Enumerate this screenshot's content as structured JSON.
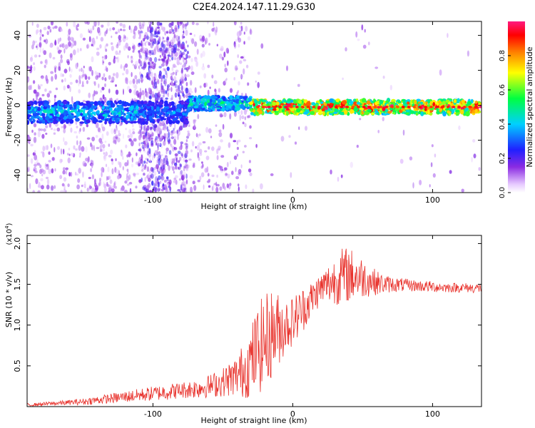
{
  "title": "C2E4.2024.147.11.29.G30",
  "chart_data": [
    {
      "type": "heatmap",
      "xlabel": "Height of straight line (km)",
      "ylabel": "Frequency (Hz)",
      "xlim": [
        -190,
        135
      ],
      "ylim": [
        -50,
        48
      ],
      "xticks": [
        -100,
        0,
        100
      ],
      "yticks": [
        -40,
        -20,
        0,
        20,
        40
      ],
      "grid": false,
      "colorbar": {
        "label": "Normalized spectral amplitude",
        "range": [
          0,
          1
        ],
        "ticks": [
          "0.0",
          "0.2",
          "0.4",
          "0.6",
          "0.8"
        ],
        "tick_values": [
          0.0,
          0.2,
          0.4,
          0.6,
          0.8
        ]
      },
      "segments": [
        {
          "x_range": [
            -190,
            -110
          ],
          "center_hz": -4,
          "max_amplitude": 0.35
        },
        {
          "x_range": [
            -110,
            -75
          ],
          "center_hz": -4,
          "max_amplitude": 0.25
        },
        {
          "x_range": [
            -75,
            -30
          ],
          "center_hz": 1,
          "max_amplitude": 0.4
        },
        {
          "x_range": [
            -30,
            135
          ],
          "center_hz": -1,
          "max_amplitude": 0.95
        }
      ]
    },
    {
      "type": "line",
      "xlabel": "Height of straight line (km)",
      "ylabel": "SNR (10 * v/v)",
      "y_multiplier": "(x10",
      "y_multiplier_exp": "4",
      "y_multiplier_close": ")",
      "xlim": [
        -190,
        135
      ],
      "ylim": [
        0,
        2.1
      ],
      "xticks": [
        -100,
        0,
        100
      ],
      "yticks": [
        0.5,
        1.0,
        1.5,
        2.0
      ],
      "ytick_labels": [
        "0.5",
        "1.0",
        "1.5",
        "2.0"
      ],
      "grid": false,
      "series": [
        {
          "color": "#e8302a",
          "x": [
            -190,
            -180,
            -170,
            -160,
            -150,
            -140,
            -130,
            -120,
            -110,
            -100,
            -90,
            -80,
            -70,
            -60,
            -50,
            -40,
            -35,
            -30,
            -25,
            -20,
            -15,
            -10,
            -5,
            0,
            5,
            10,
            15,
            20,
            25,
            30,
            35,
            40,
            45,
            50,
            55,
            60,
            65,
            70,
            80,
            90,
            100,
            110,
            120,
            135
          ],
          "y": [
            0.02,
            0.03,
            0.04,
            0.05,
            0.06,
            0.08,
            0.1,
            0.12,
            0.14,
            0.16,
            0.18,
            0.2,
            0.22,
            0.25,
            0.3,
            0.38,
            0.45,
            0.55,
            0.7,
            0.8,
            0.9,
            0.95,
            1.0,
            1.05,
            1.15,
            1.25,
            1.35,
            1.45,
            1.5,
            1.55,
            1.6,
            1.62,
            1.6,
            1.58,
            1.55,
            1.52,
            1.5,
            1.5,
            1.49,
            1.48,
            1.47,
            1.46,
            1.46,
            1.45
          ],
          "noise_amplitude": [
            0.02,
            0.02,
            0.03,
            0.03,
            0.04,
            0.05,
            0.06,
            0.07,
            0.08,
            0.09,
            0.1,
            0.1,
            0.12,
            0.14,
            0.18,
            0.25,
            0.35,
            0.45,
            0.55,
            0.6,
            0.55,
            0.45,
            0.35,
            0.3,
            0.3,
            0.25,
            0.22,
            0.2,
            0.25,
            0.3,
            0.35,
            0.35,
            0.3,
            0.25,
            0.2,
            0.15,
            0.12,
            0.1,
            0.08,
            0.07,
            0.07,
            0.06,
            0.06,
            0.06
          ]
        }
      ]
    }
  ]
}
